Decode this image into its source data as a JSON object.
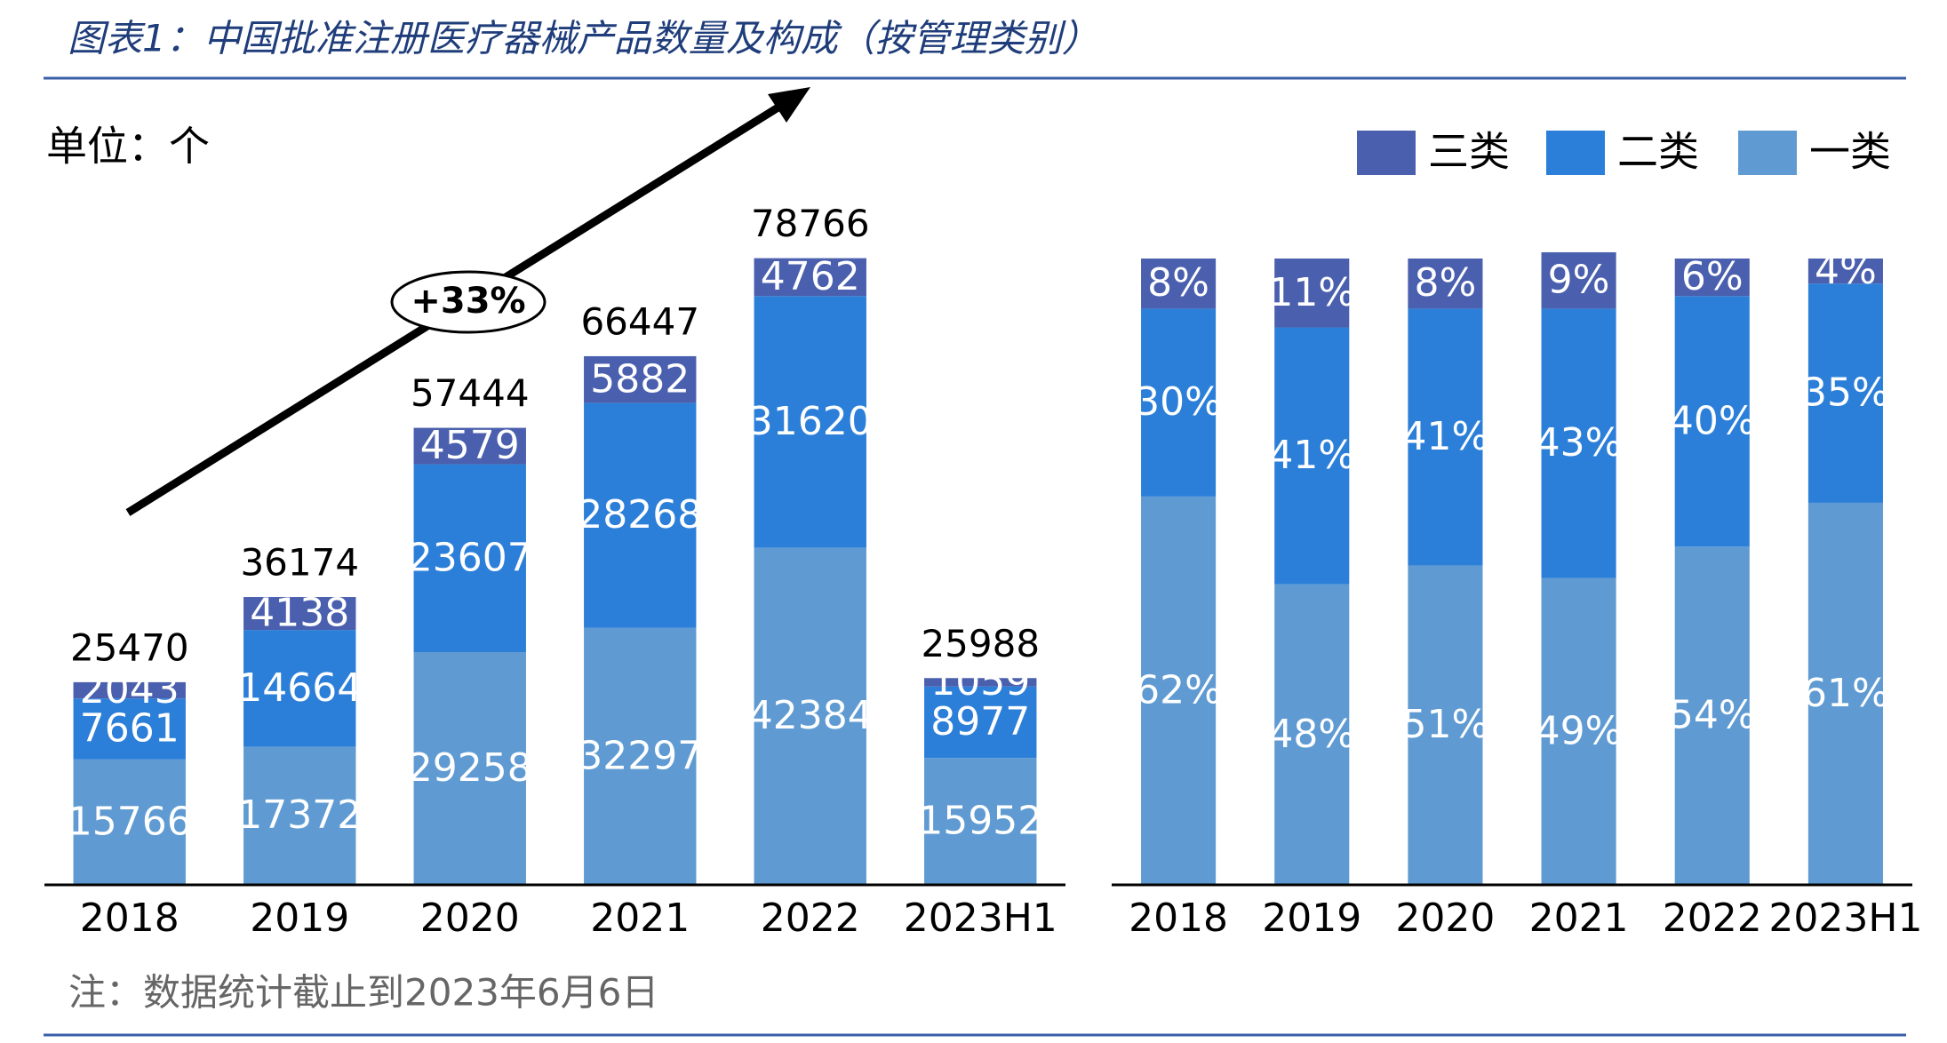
{
  "title": "图表1：中国批准注册医疗器械产品数量及构成（按管理类别）",
  "note": "注：数据统计截止到2023年6月6日",
  "chart_data": [
    {
      "type": "stacked_bar",
      "unit_label": "单位：个",
      "annotation": "+33%",
      "categories": [
        "2018",
        "2019",
        "2020",
        "2021",
        "2022",
        "2023H1"
      ],
      "series": [
        {
          "color": "#5f9bd2",
          "values": [
            15766,
            17372,
            29258,
            32297,
            42384,
            15952
          ]
        },
        {
          "color": "#2c7fd8",
          "values": [
            7661,
            14664,
            23607,
            28268,
            31620,
            8977
          ]
        },
        {
          "color": "#4a5fae",
          "values": [
            2043,
            4138,
            4579,
            5882,
            4762,
            1059
          ]
        }
      ],
      "totals": [
        25470,
        36174,
        57444,
        66447,
        78766,
        25988
      ],
      "ylim": [
        0,
        90000
      ]
    },
    {
      "type": "stacked_bar",
      "legend": "top-right",
      "categories": [
        "2018",
        "2019",
        "2020",
        "2021",
        "2022",
        "2023H1"
      ],
      "series": [
        {
          "name": "一类",
          "color": "#5f9bd2",
          "values": [
            62,
            48,
            51,
            49,
            54,
            61
          ],
          "value_labels": [
            "62%",
            "48%",
            "51%",
            "49%",
            "54%",
            "61%"
          ]
        },
        {
          "name": "二类",
          "color": "#2c7fd8",
          "values": [
            30,
            41,
            41,
            43,
            40,
            35
          ],
          "value_labels": [
            "30%",
            "41%",
            "41%",
            "43%",
            "40%",
            "35%"
          ]
        },
        {
          "name": "三类",
          "color": "#4a5fae",
          "values": [
            8,
            11,
            8,
            9,
            6,
            4
          ],
          "value_labels": [
            "8%",
            "11%",
            "8%",
            "9%",
            "6%",
            "4%"
          ]
        }
      ],
      "ylim": [
        0,
        100
      ]
    }
  ]
}
